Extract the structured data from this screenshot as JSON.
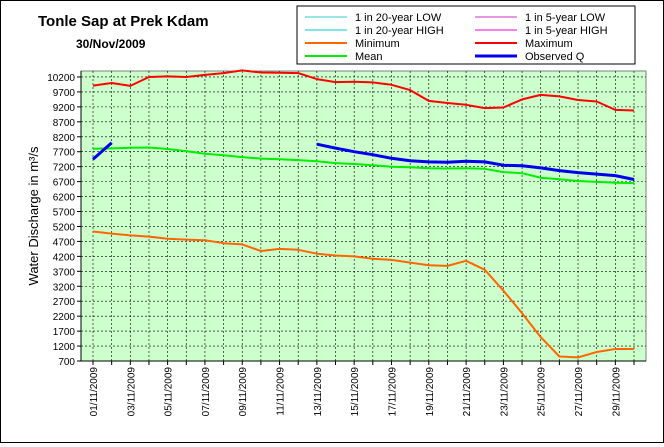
{
  "chart_data": {
    "type": "line",
    "title": "Tonle Sap at Prek Kdam",
    "subtitle": "30/Nov/2009",
    "ylabel": "Water Discharge in m³/s",
    "xlabel": "",
    "ylim": [
      700,
      10400
    ],
    "yticks": [
      700,
      1200,
      1700,
      2200,
      2700,
      3200,
      3700,
      4200,
      4700,
      5200,
      5700,
      6200,
      6700,
      7200,
      7700,
      8200,
      8700,
      9200,
      9700,
      10200
    ],
    "xticks": [
      "01/11/2009",
      "03/11/2009",
      "05/11/2009",
      "07/11/2009",
      "09/11/2009",
      "11/11/2009",
      "13/11/2009",
      "15/11/2009",
      "17/11/2009",
      "19/11/2009",
      "21/11/2009",
      "23/11/2009",
      "25/11/2009",
      "27/11/2009",
      "29/11/2009"
    ],
    "x_days": [
      1,
      30
    ],
    "grid": true,
    "plot_background": "#ccffcc",
    "legend_position": "top-right",
    "series": [
      {
        "name": "1 in 20-year LOW",
        "color": "#33cccc",
        "width": 1,
        "points": []
      },
      {
        "name": "1 in 5-year LOW",
        "color": "#cc33cc",
        "width": 1,
        "points": []
      },
      {
        "name": "1 in 20-year HIGH",
        "color": "#00cccc",
        "width": 1,
        "points": []
      },
      {
        "name": "1 in 5-year HIGH",
        "color": "#ff00cc",
        "width": 1,
        "points": []
      },
      {
        "name": "Minimum",
        "color": "#ff6600",
        "width": 2,
        "points": [
          [
            1,
            5030
          ],
          [
            2,
            4960
          ],
          [
            3,
            4900
          ],
          [
            4,
            4860
          ],
          [
            5,
            4790
          ],
          [
            6,
            4760
          ],
          [
            7,
            4740
          ],
          [
            8,
            4640
          ],
          [
            9,
            4600
          ],
          [
            10,
            4380
          ],
          [
            11,
            4450
          ],
          [
            12,
            4420
          ],
          [
            13,
            4290
          ],
          [
            14,
            4230
          ],
          [
            15,
            4200
          ],
          [
            16,
            4120
          ],
          [
            17,
            4080
          ],
          [
            18,
            3990
          ],
          [
            19,
            3900
          ],
          [
            20,
            3880
          ],
          [
            21,
            4050
          ],
          [
            22,
            3750
          ],
          [
            23,
            3050
          ],
          [
            24,
            2300
          ],
          [
            25,
            1500
          ],
          [
            26,
            850
          ],
          [
            27,
            820
          ],
          [
            28,
            1000
          ],
          [
            29,
            1100
          ],
          [
            30,
            1100
          ]
        ]
      },
      {
        "name": "Maximum",
        "color": "#ff0000",
        "width": 2,
        "points": [
          [
            1,
            9910
          ],
          [
            2,
            10000
          ],
          [
            3,
            9900
          ],
          [
            4,
            10200
          ],
          [
            5,
            10220
          ],
          [
            6,
            10200
          ],
          [
            7,
            10270
          ],
          [
            8,
            10330
          ],
          [
            9,
            10420
          ],
          [
            10,
            10350
          ],
          [
            11,
            10340
          ],
          [
            12,
            10330
          ],
          [
            13,
            10130
          ],
          [
            14,
            10030
          ],
          [
            15,
            10040
          ],
          [
            16,
            10020
          ],
          [
            17,
            9940
          ],
          [
            18,
            9760
          ],
          [
            19,
            9400
          ],
          [
            20,
            9330
          ],
          [
            21,
            9270
          ],
          [
            22,
            9160
          ],
          [
            23,
            9180
          ],
          [
            24,
            9450
          ],
          [
            25,
            9600
          ],
          [
            26,
            9550
          ],
          [
            27,
            9430
          ],
          [
            28,
            9380
          ],
          [
            29,
            9100
          ],
          [
            30,
            9080
          ]
        ]
      },
      {
        "name": "Mean",
        "color": "#00ee00",
        "width": 2,
        "points": [
          [
            1,
            7800
          ],
          [
            2,
            7810
          ],
          [
            3,
            7830
          ],
          [
            4,
            7840
          ],
          [
            5,
            7790
          ],
          [
            6,
            7720
          ],
          [
            7,
            7630
          ],
          [
            8,
            7580
          ],
          [
            9,
            7520
          ],
          [
            10,
            7470
          ],
          [
            11,
            7450
          ],
          [
            12,
            7420
          ],
          [
            13,
            7380
          ],
          [
            14,
            7320
          ],
          [
            15,
            7290
          ],
          [
            16,
            7250
          ],
          [
            17,
            7200
          ],
          [
            18,
            7180
          ],
          [
            19,
            7150
          ],
          [
            20,
            7140
          ],
          [
            21,
            7150
          ],
          [
            22,
            7130
          ],
          [
            23,
            7020
          ],
          [
            24,
            6980
          ],
          [
            25,
            6830
          ],
          [
            26,
            6780
          ],
          [
            27,
            6720
          ],
          [
            28,
            6690
          ],
          [
            29,
            6660
          ],
          [
            30,
            6650
          ]
        ]
      },
      {
        "name": "Observed Q",
        "color": "#0000ee",
        "width": 3,
        "points": [
          [
            1,
            7450
          ],
          [
            2,
            8000
          ],
          null,
          [
            13,
            7950
          ],
          [
            14,
            7820
          ],
          [
            15,
            7700
          ],
          [
            16,
            7600
          ],
          [
            17,
            7480
          ],
          [
            18,
            7400
          ],
          [
            19,
            7360
          ],
          [
            20,
            7350
          ],
          [
            21,
            7380
          ],
          [
            22,
            7360
          ],
          [
            23,
            7250
          ],
          [
            24,
            7230
          ],
          [
            25,
            7160
          ],
          [
            26,
            7070
          ],
          [
            27,
            7000
          ],
          [
            28,
            6950
          ],
          [
            29,
            6900
          ],
          [
            30,
            6770
          ]
        ]
      }
    ]
  }
}
